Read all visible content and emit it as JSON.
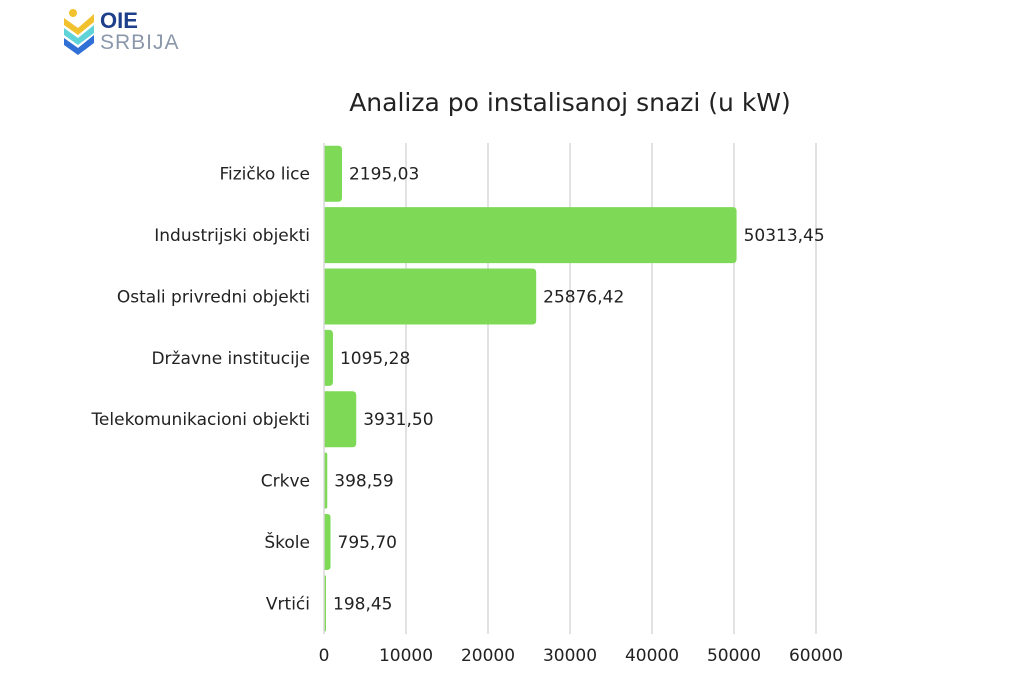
{
  "logo": {
    "line1": "OIE",
    "line2": "SRBIJA",
    "colors": [
      "#f2c12e",
      "#5fd3d8",
      "#2f6fd6"
    ]
  },
  "chart_data": {
    "type": "bar",
    "orientation": "horizontal",
    "title": "Analiza po instalisanoj snazi (u kW)",
    "categories": [
      "Fizičko lice",
      "Industrijski objekti",
      "Ostali privredni objekti",
      "Državne institucije",
      "Telekomunikacioni objekti",
      "Crkve",
      "Škole",
      "Vrtići"
    ],
    "values": [
      2195.03,
      50313.45,
      25876.42,
      1095.28,
      3931.5,
      398.59,
      795.7,
      198.45
    ],
    "data_labels": [
      "2195,03",
      "50313,45",
      "25876,42",
      "1095,28",
      "3931,50",
      "398,59",
      "795,70",
      "198,45"
    ],
    "xlim": [
      0,
      60000
    ],
    "xticks": [
      "0",
      "10000",
      "20000",
      "30000",
      "40000",
      "50000",
      "60000"
    ],
    "grid": true,
    "bar_color": "#7ed957"
  }
}
